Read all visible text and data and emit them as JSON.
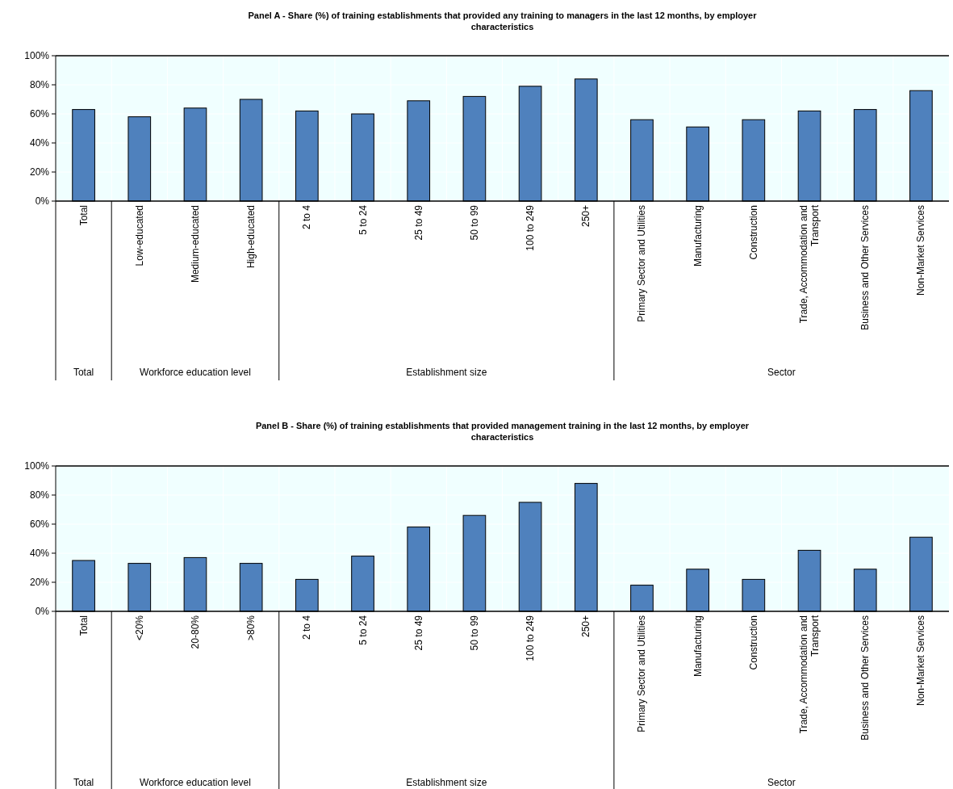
{
  "chart_data": [
    {
      "type": "bar",
      "title": "Panel A - Share (%) of training establishments that provided any training to managers in the last 12 months, by employer characteristics",
      "categories": [
        "Total",
        "Low-educated",
        "Medium-educated",
        "High-educated",
        "2 to 4",
        "5 to 24",
        "25 to 49",
        "50 to 99",
        "100 to 249",
        "250+",
        "Primary Sector and Utilities",
        "Manufacturing",
        "Construction",
        "Trade, Accommodation and Transport",
        "Business and Other Services",
        "Non-Market Services"
      ],
      "values": [
        63,
        58,
        64,
        70,
        62,
        60,
        69,
        72,
        79,
        84,
        56,
        51,
        56,
        62,
        63,
        76
      ],
      "color": "#4f81bd",
      "ylim": [
        0,
        100
      ],
      "yticks": [
        {
          "value": 0,
          "label": "0%"
        },
        {
          "value": 20,
          "label": "20%"
        },
        {
          "value": 40,
          "label": "40%"
        },
        {
          "value": 60,
          "label": "60%"
        },
        {
          "value": 80,
          "label": "80%"
        },
        {
          "value": 100,
          "label": "100%"
        }
      ],
      "grid": true,
      "annotations": [
        "Total",
        "Workforce education level",
        "Establishment size",
        "Sector"
      ]
    },
    {
      "type": "bar",
      "title": "Panel B - Share (%) of training establishments that provided management training in the last 12 months, by employer characteristics",
      "categories": [
        "Total",
        "<20%",
        "20-80%",
        ">80%",
        "2 to 4",
        "5 to 24",
        "25 to 49",
        "50 to 99",
        "100 to 249",
        "250+",
        "Primary Sector and Utilities",
        "Manufacturing",
        "Construction",
        "Trade, Accommodation and Transport",
        "Business and Other Services",
        "Non-Market Services"
      ],
      "values": [
        35,
        33,
        37,
        33,
        22,
        38,
        58,
        66,
        75,
        88,
        18,
        29,
        22,
        42,
        29,
        51
      ],
      "color": "#4f81bd",
      "ylim": [
        0,
        100
      ],
      "yticks": [
        {
          "value": 0,
          "label": "0%"
        },
        {
          "value": 20,
          "label": "20%"
        },
        {
          "value": 40,
          "label": "40%"
        },
        {
          "value": 60,
          "label": "60%"
        },
        {
          "value": 80,
          "label": "80%"
        },
        {
          "value": 100,
          "label": "100%"
        }
      ],
      "grid": true,
      "annotations": [
        "Total",
        "Workforce education level",
        "Establishment size",
        "Sector"
      ]
    }
  ]
}
